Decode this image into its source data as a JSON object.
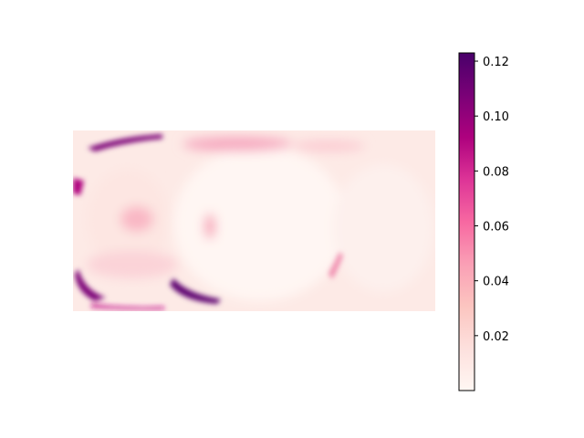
{
  "chart_data": {
    "type": "heatmap",
    "title": "",
    "xlabel": "",
    "ylabel": "",
    "axes_visible": false,
    "colormap": "RdPu",
    "colormap_stops": [
      "#fff7f3",
      "#fde0dd",
      "#fcc5c0",
      "#fa9fb5",
      "#f768a1",
      "#dd3497",
      "#ae017e",
      "#7a0177",
      "#49006a"
    ],
    "colorbar": {
      "vmin": 0.0,
      "vmax": 0.123,
      "ticks": [
        0.02,
        0.04,
        0.06,
        0.08,
        0.1,
        0.12
      ],
      "tick_labels": [
        "0.02",
        "0.04",
        "0.06",
        "0.08",
        "0.10",
        "0.12"
      ]
    },
    "image_aspect": "2:1 equirectangular",
    "value_range_observed": [
      0.0,
      0.123
    ]
  }
}
